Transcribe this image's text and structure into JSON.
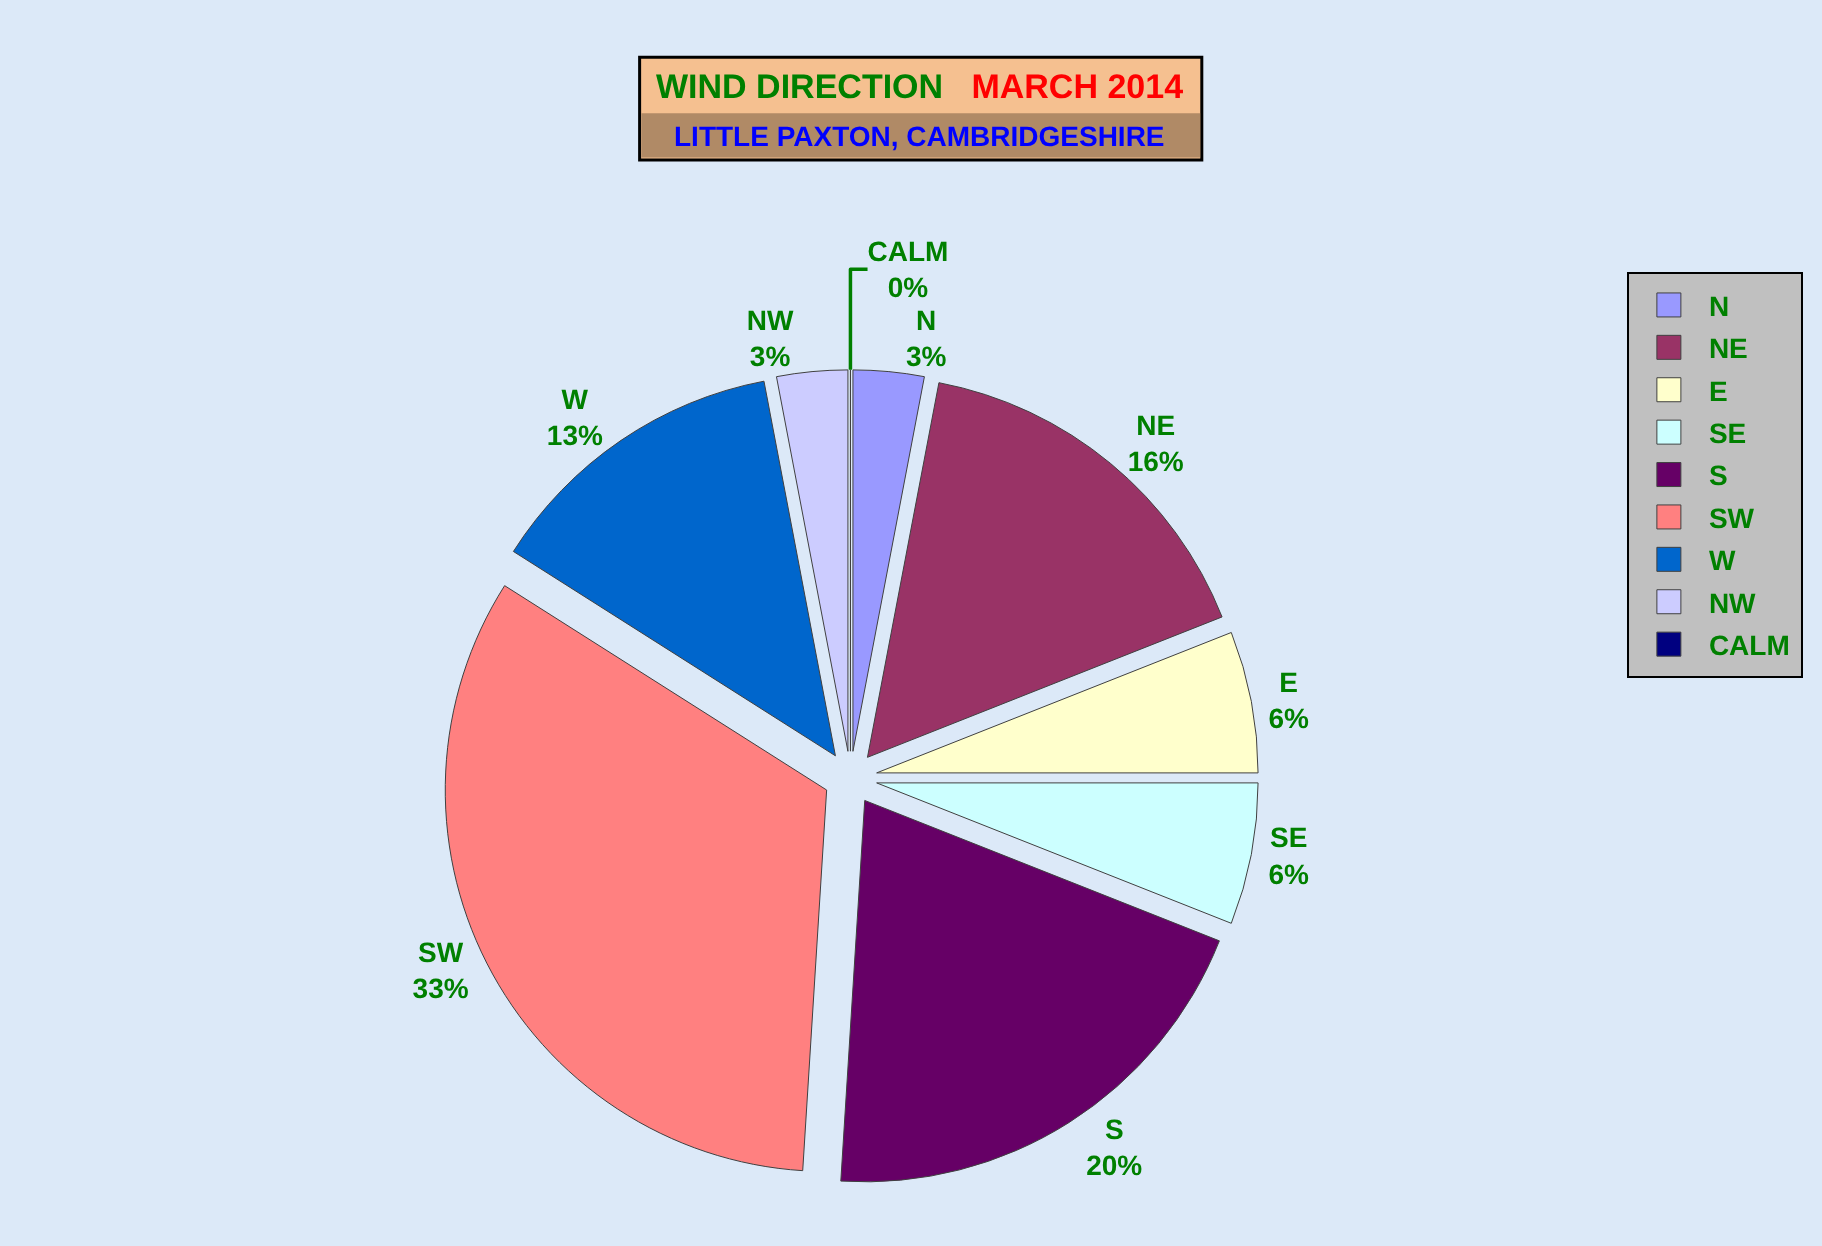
{
  "chart_data": {
    "type": "pie",
    "title": "WIND DIRECTION   MARCH 2014",
    "subtitle": "LITTLE PAXTON, CAMBRIDGESHIRE",
    "categories": [
      "N",
      "NE",
      "E",
      "SE",
      "S",
      "SW",
      "W",
      "NW",
      "CALM"
    ],
    "values": [
      3,
      16,
      6,
      6,
      20,
      33,
      13,
      3,
      0
    ],
    "value_labels": [
      "3%",
      "16%",
      "6%",
      "6%",
      "20%",
      "33%",
      "13%",
      "3%",
      "0%"
    ],
    "colors": [
      "#9999ff",
      "#993366",
      "#ffffcc",
      "#ccffff",
      "#660066",
      "#ff8080",
      "#0066cc",
      "#ccccff",
      "#000080"
    ],
    "legend": "right"
  }
}
